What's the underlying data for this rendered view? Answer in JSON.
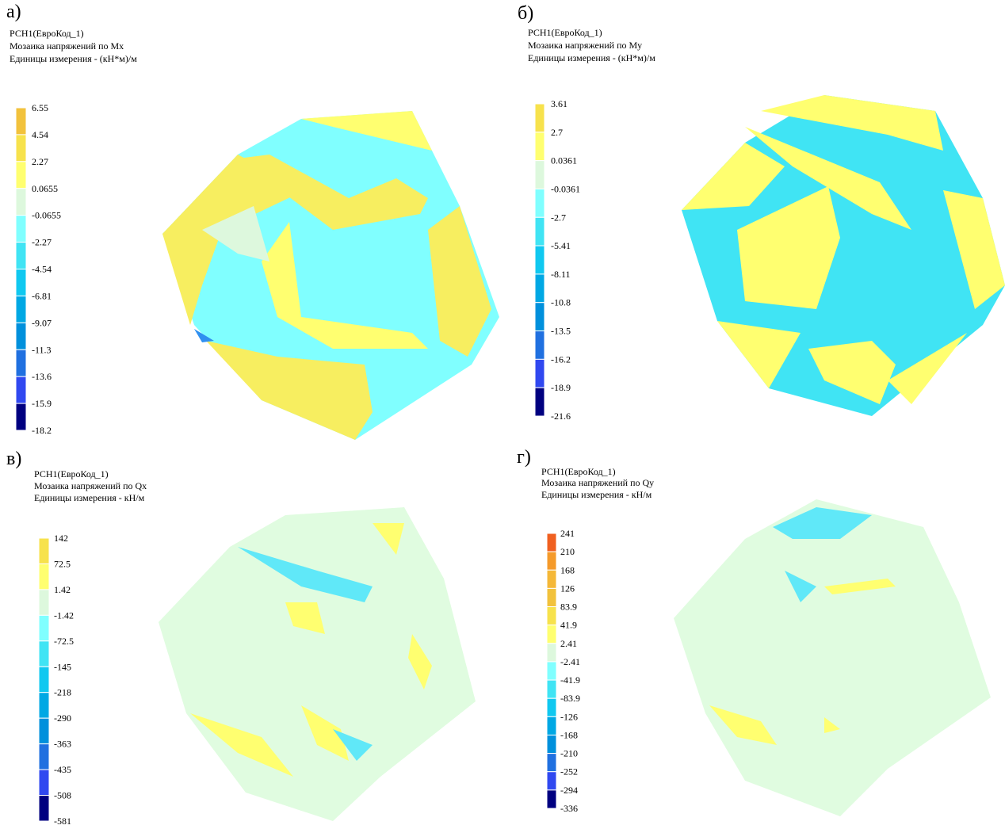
{
  "panels": [
    {
      "letter": "а)",
      "lines": [
        "РСН1(ЕвроКод_1)",
        "Мозаика напряжений по Mx",
        "Единицы измерения - (кН*м)/м"
      ],
      "legend": {
        "labels": [
          "6.55",
          "4.54",
          "2.27",
          "0.0655",
          "-0.0655",
          "-2.27",
          "-4.54",
          "-6.81",
          "-9.07",
          "-11.3",
          "-13.6",
          "-15.9",
          "-18.2"
        ],
        "colors": [
          "#f2c23c",
          "#f7e24c",
          "#ffff70",
          "#ddf8dd",
          "#80ffff",
          "#40e4f4",
          "#10c8f0",
          "#00a8e4",
          "#0090dc",
          "#2070e0",
          "#3048f0",
          "#000080"
        ]
      }
    },
    {
      "letter": "б)",
      "lines": [
        "РСН1(ЕвроКод_1)",
        "Мозаика напряжений по My",
        "Единицы измерения - (кН*м)/м"
      ],
      "legend": {
        "labels": [
          "3.61",
          "2.7",
          "0.0361",
          "-0.0361",
          "-2.7",
          "-5.41",
          "-8.11",
          "-10.8",
          "-13.5",
          "-16.2",
          "-18.9",
          "-21.6"
        ],
        "colors": [
          "#f7e24c",
          "#ffff70",
          "#ddf8dd",
          "#80ffff",
          "#40e4f4",
          "#10c8f0",
          "#00a8e4",
          "#0090dc",
          "#2070e0",
          "#3048f0",
          "#000080"
        ]
      }
    },
    {
      "letter": "в)",
      "lines": [
        "РСН1(ЕвроКод_1)",
        "Мозаика напряжений по Qx",
        "Единицы измерения - кН/м"
      ],
      "legend": {
        "labels": [
          "142",
          "72.5",
          "1.42",
          "-1.42",
          "-72.5",
          "-145",
          "-218",
          "-290",
          "-363",
          "-435",
          "-508",
          "-581"
        ],
        "colors": [
          "#f7e24c",
          "#ffff70",
          "#ddf8dd",
          "#80ffff",
          "#40e4f4",
          "#10c8f0",
          "#00a8e4",
          "#0090dc",
          "#2070e0",
          "#3048f0",
          "#000080"
        ]
      }
    },
    {
      "letter": "г)",
      "lines": [
        "РСН1(ЕвроКод_1)",
        "Мозаика напряжений по Qy",
        "Единицы измерения - кН/м"
      ],
      "legend": {
        "labels": [
          "241",
          "210",
          "168",
          "126",
          "83.9",
          "41.9",
          "2.41",
          "-2.41",
          "-41.9",
          "-83.9",
          "-126",
          "-168",
          "-210",
          "-252",
          "-294",
          "-336"
        ],
        "colors": [
          "#f06020",
          "#f59a2a",
          "#f5b838",
          "#f2c23c",
          "#f7e24c",
          "#ffff70",
          "#ddf8dd",
          "#80ffff",
          "#40e4f4",
          "#10c8f0",
          "#00a8e4",
          "#0090dc",
          "#2070e0",
          "#3048f0",
          "#000080"
        ]
      }
    }
  ]
}
